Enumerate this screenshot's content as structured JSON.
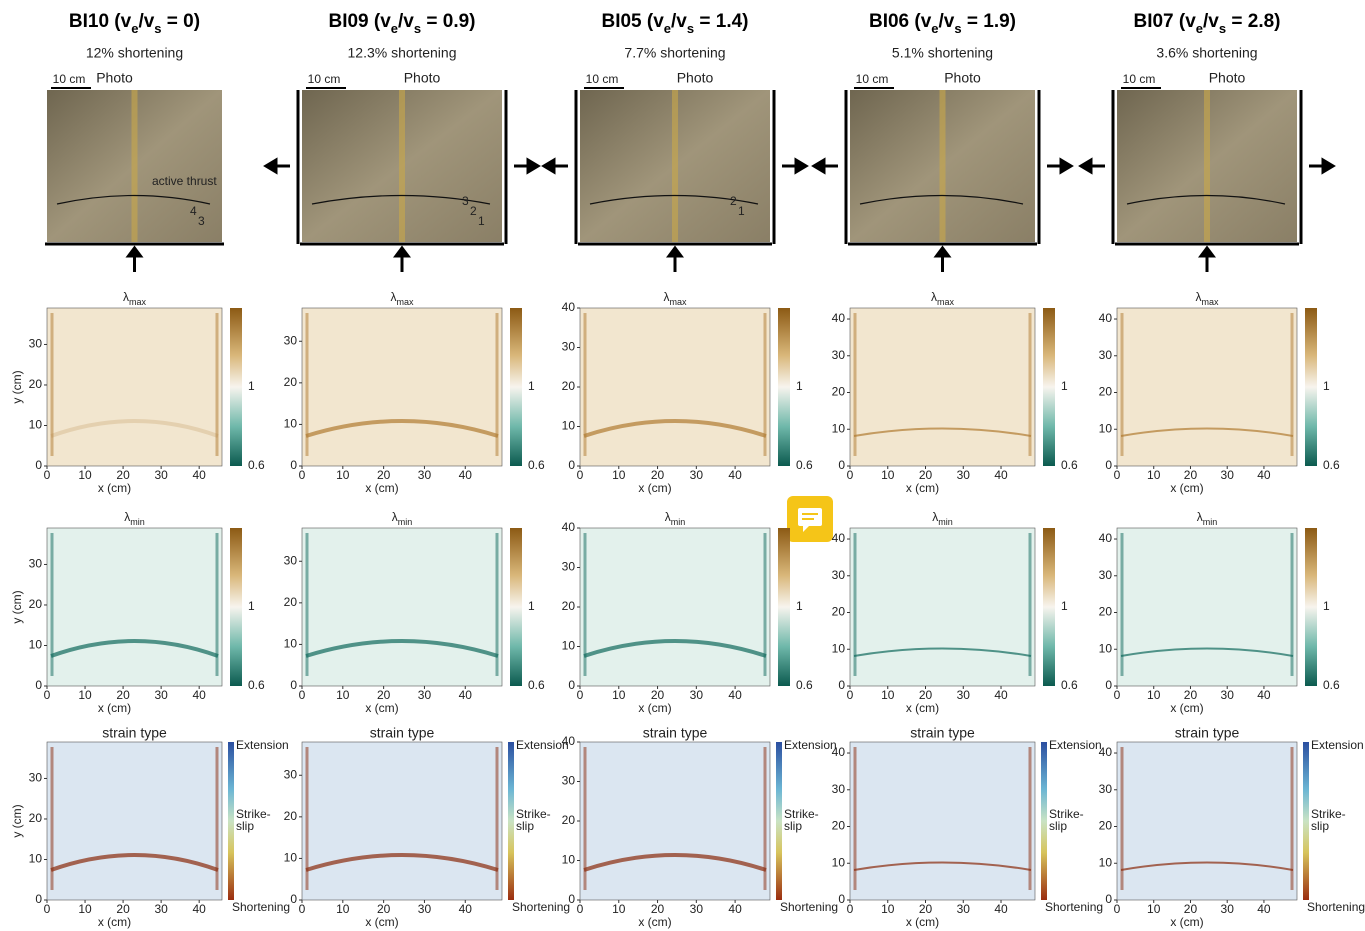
{
  "figure": {
    "x_label": "x (cm)",
    "y_label": "y (cm)",
    "lambda": "λ",
    "max": "max",
    "min": "min",
    "strain_title": "strain type",
    "colorbar": {
      "mid": 1,
      "low": 0.6
    },
    "strain_legend": {
      "extension": "Extension",
      "strike_slip": [
        "Strike-",
        "slip"
      ],
      "shortening": "Shortening"
    },
    "columns": [
      {
        "title": [
          "BI10 (v",
          "e",
          "/v",
          "s",
          " = 0)"
        ],
        "subtitle": "12% shortening",
        "photo_label": "Photo",
        "scale": "10 cm",
        "annotations": [
          "active thrust",
          "4",
          "3"
        ],
        "xlim": [
          0,
          46
        ],
        "xticks": [
          0,
          10,
          20,
          30,
          40
        ],
        "ylim": [
          0,
          39
        ],
        "yticks": [
          0,
          10,
          20,
          30
        ]
      },
      {
        "title": [
          "BI09 (v",
          "e",
          "/v",
          "s",
          " = 0.9)"
        ],
        "subtitle": "12.3% shortening",
        "photo_label": "Photo",
        "scale": "10 cm",
        "annotations": [
          "3",
          "2",
          "1"
        ],
        "xlim": [
          0,
          49
        ],
        "xticks": [
          0,
          10,
          20,
          30,
          40
        ],
        "ylim": [
          0,
          38
        ],
        "yticks": [
          0,
          10,
          20,
          30
        ]
      },
      {
        "title": [
          "BI05 (v",
          "e",
          "/v",
          "s",
          " = 1.4)"
        ],
        "subtitle": "7.7% shortening",
        "photo_label": "Photo",
        "scale": "10 cm",
        "annotations": [
          "2",
          "1"
        ],
        "xlim": [
          0,
          49
        ],
        "xticks": [
          0,
          10,
          20,
          30,
          40
        ],
        "ylim": [
          0,
          40
        ],
        "yticks": [
          0,
          10,
          20,
          30,
          40
        ]
      },
      {
        "title": [
          "BI06 (v",
          "e",
          "/v",
          "s",
          " = 1.9)"
        ],
        "subtitle": "5.1% shortening",
        "photo_label": "Photo",
        "scale": "10 cm",
        "annotations": [],
        "xlim": [
          0,
          49
        ],
        "xticks": [
          0,
          10,
          20,
          30,
          40
        ],
        "ylim": [
          0,
          43
        ],
        "yticks": [
          0,
          10,
          20,
          30,
          40
        ]
      },
      {
        "title": [
          "BI07 (v",
          "e",
          "/v",
          "s",
          " = 2.8)"
        ],
        "subtitle": "3.6% shortening",
        "photo_label": "Photo",
        "scale": "10 cm",
        "annotations": [],
        "xlim": [
          0,
          49
        ],
        "xticks": [
          0,
          10,
          20,
          30,
          40
        ],
        "ylim": [
          0,
          43
        ],
        "yticks": [
          0,
          10,
          20,
          30,
          40
        ]
      }
    ]
  }
}
